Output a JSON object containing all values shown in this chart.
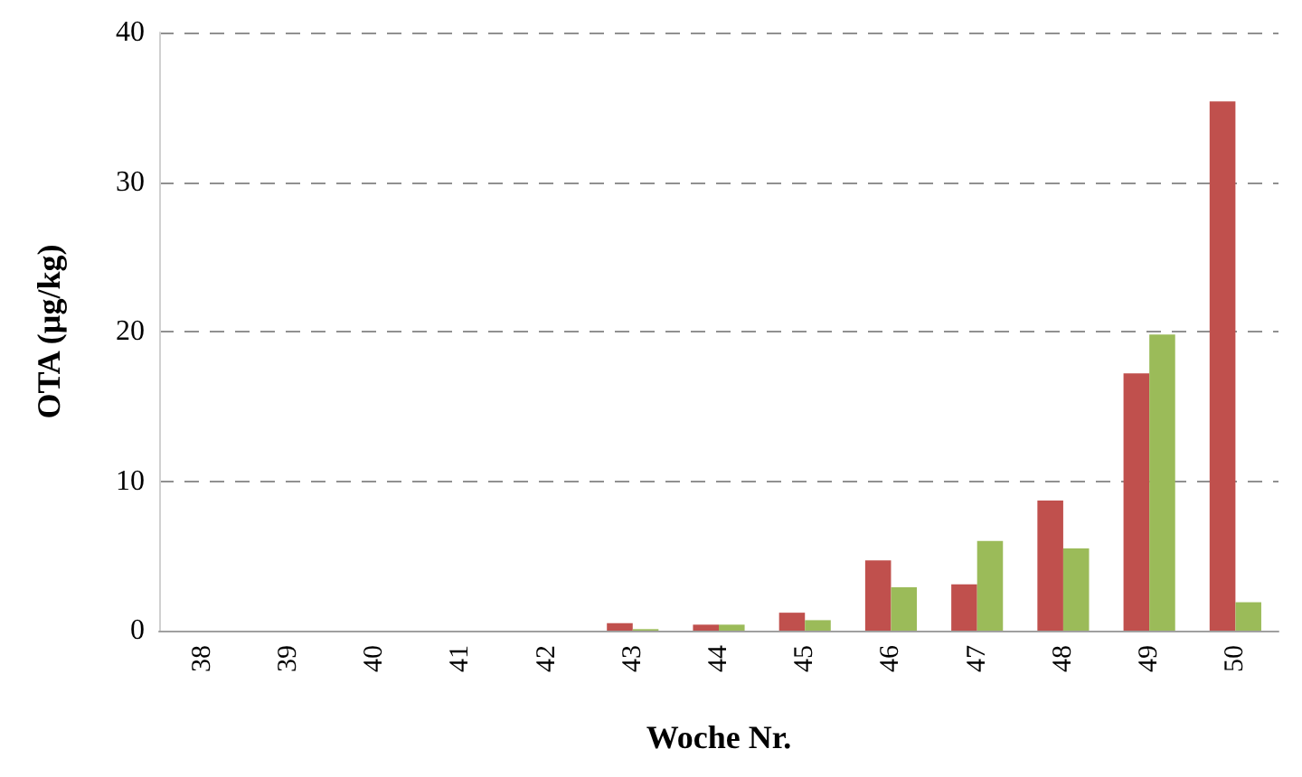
{
  "chart_data": {
    "type": "bar",
    "xlabel": "Woche Nr.",
    "ylabel": "OTA (µg/kg)",
    "categories": [
      "38",
      "39",
      "40",
      "41",
      "42",
      "43",
      "44",
      "45",
      "46",
      "47",
      "48",
      "49",
      "50"
    ],
    "series": [
      {
        "color": "#c0504d",
        "values": [
          0,
          0,
          0,
          0,
          0,
          0.5,
          0.4,
          1.2,
          4.7,
          3.1,
          8.7,
          17.2,
          35.4
        ]
      },
      {
        "color": "#9bbb59",
        "values": [
          0,
          0,
          0,
          0,
          0,
          0.1,
          0.4,
          0.7,
          2.9,
          6.0,
          5.5,
          19.8,
          1.9
        ]
      }
    ],
    "ylim": [
      0,
      40
    ],
    "yticks": [
      0,
      10,
      20,
      30,
      40
    ],
    "grid": "y"
  }
}
